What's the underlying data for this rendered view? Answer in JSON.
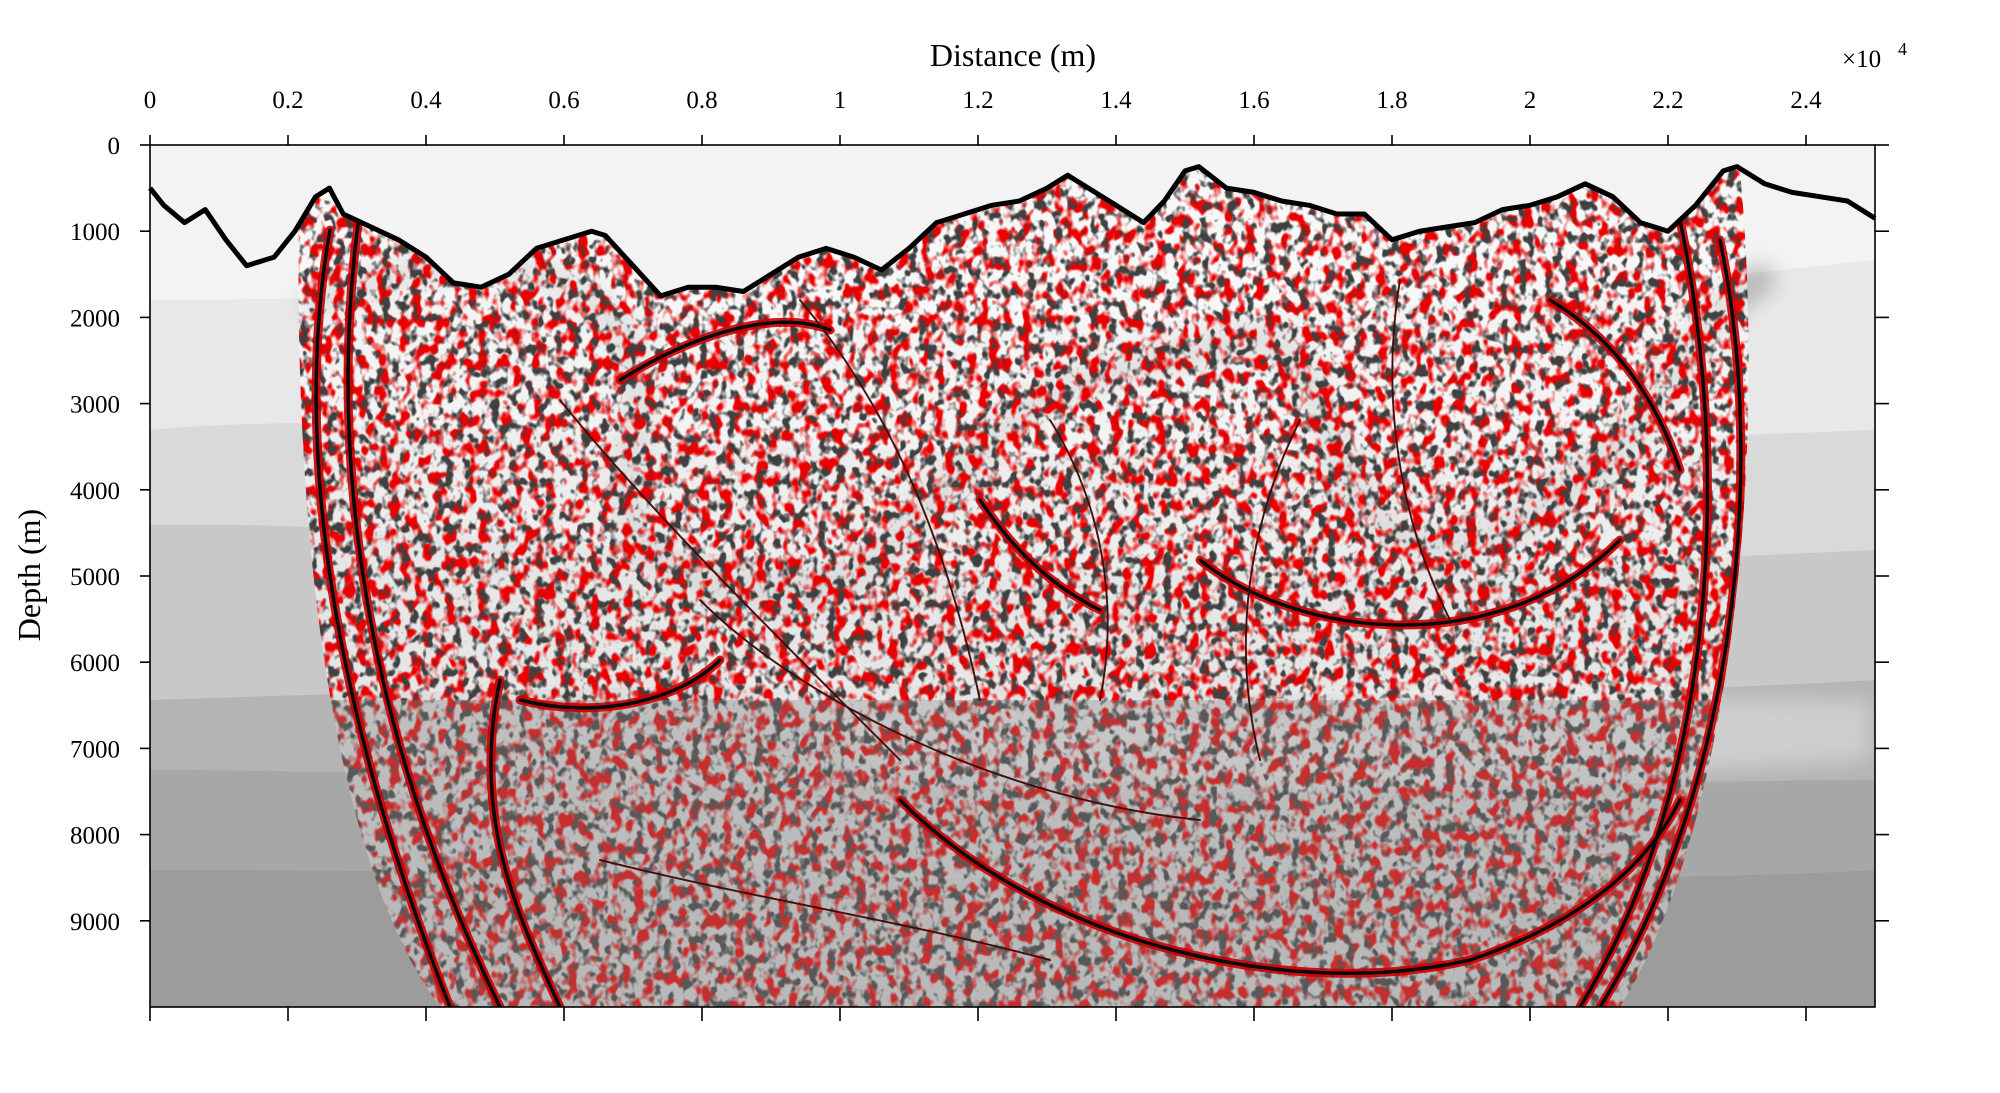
{
  "chart_data": {
    "type": "heatmap",
    "title": "",
    "xlabel": "Distance (m)",
    "ylabel": "Depth (m)",
    "x_exponent_label": "×10",
    "x_exponent_power": "4",
    "xlim": [
      0,
      2.5
    ],
    "ylim": [
      0,
      10000
    ],
    "y_reversed": true,
    "x_axis_position": "top",
    "grid": false,
    "legend": "none",
    "x_ticks": [
      0,
      0.2,
      0.4,
      0.6,
      0.8,
      1,
      1.2,
      1.4,
      1.6,
      1.8,
      2,
      2.2,
      2.4
    ],
    "x_tick_labels": [
      "0",
      "0.2",
      "0.4",
      "0.6",
      "0.8",
      "1",
      "1.2",
      "1.4",
      "1.6",
      "1.8",
      "2",
      "2.2",
      "2.4"
    ],
    "y_ticks": [
      0,
      1000,
      2000,
      3000,
      4000,
      5000,
      6000,
      7000,
      8000,
      9000
    ],
    "y_tick_labels": [
      "0",
      "1000",
      "2000",
      "3000",
      "4000",
      "5000",
      "6000",
      "7000",
      "8000",
      "9000"
    ],
    "surface_profile": {
      "x": [
        0,
        0.02,
        0.05,
        0.08,
        0.11,
        0.14,
        0.18,
        0.21,
        0.24,
        0.26,
        0.28,
        0.32,
        0.36,
        0.4,
        0.44,
        0.48,
        0.52,
        0.56,
        0.6,
        0.64,
        0.66,
        0.7,
        0.74,
        0.78,
        0.82,
        0.86,
        0.9,
        0.94,
        0.98,
        1.02,
        1.06,
        1.1,
        1.14,
        1.18,
        1.22,
        1.26,
        1.3,
        1.33,
        1.36,
        1.4,
        1.44,
        1.47,
        1.5,
        1.52,
        1.56,
        1.6,
        1.64,
        1.68,
        1.72,
        1.76,
        1.8,
        1.84,
        1.88,
        1.92,
        1.96,
        2.0,
        2.04,
        2.08,
        2.12,
        2.16,
        2.2,
        2.24,
        2.28,
        2.3,
        2.34,
        2.38,
        2.42,
        2.46,
        2.5
      ],
      "depth": [
        500,
        700,
        900,
        750,
        1100,
        1400,
        1300,
        1000,
        600,
        500,
        800,
        950,
        1100,
        1300,
        1600,
        1650,
        1500,
        1200,
        1100,
        1000,
        1050,
        1400,
        1750,
        1650,
        1650,
        1700,
        1500,
        1300,
        1200,
        1300,
        1450,
        1200,
        900,
        800,
        700,
        650,
        500,
        350,
        500,
        700,
        900,
        650,
        300,
        250,
        500,
        550,
        650,
        700,
        800,
        800,
        1100,
        1000,
        950,
        900,
        750,
        700,
        600,
        450,
        600,
        900,
        1000,
        700,
        300,
        250,
        450,
        550,
        600,
        650,
        850
      ]
    },
    "annotations": []
  }
}
